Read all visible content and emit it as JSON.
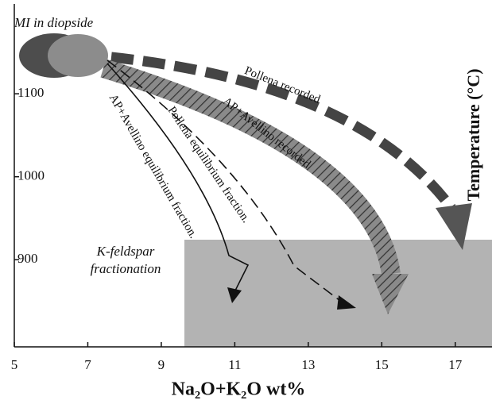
{
  "chart_data": {
    "type": "diagram",
    "xlabel": "Na₂O+K₂O wt%",
    "ylabel": "Temperature (°C)",
    "xlim": [
      5,
      18
    ],
    "xticks": [
      5,
      7,
      9,
      11,
      13,
      15,
      17
    ],
    "ylim": [
      795,
      1213
    ],
    "yticks": [
      900,
      1000,
      1100
    ],
    "annotations": [
      "MI in diopside",
      "Pollena recorded",
      "AP+Avellino recorded",
      "Pollena equilibrium fraction.",
      "AP+Avellino equilibrium fraction.",
      "K-feldspar",
      "fractionation"
    ]
  }
}
